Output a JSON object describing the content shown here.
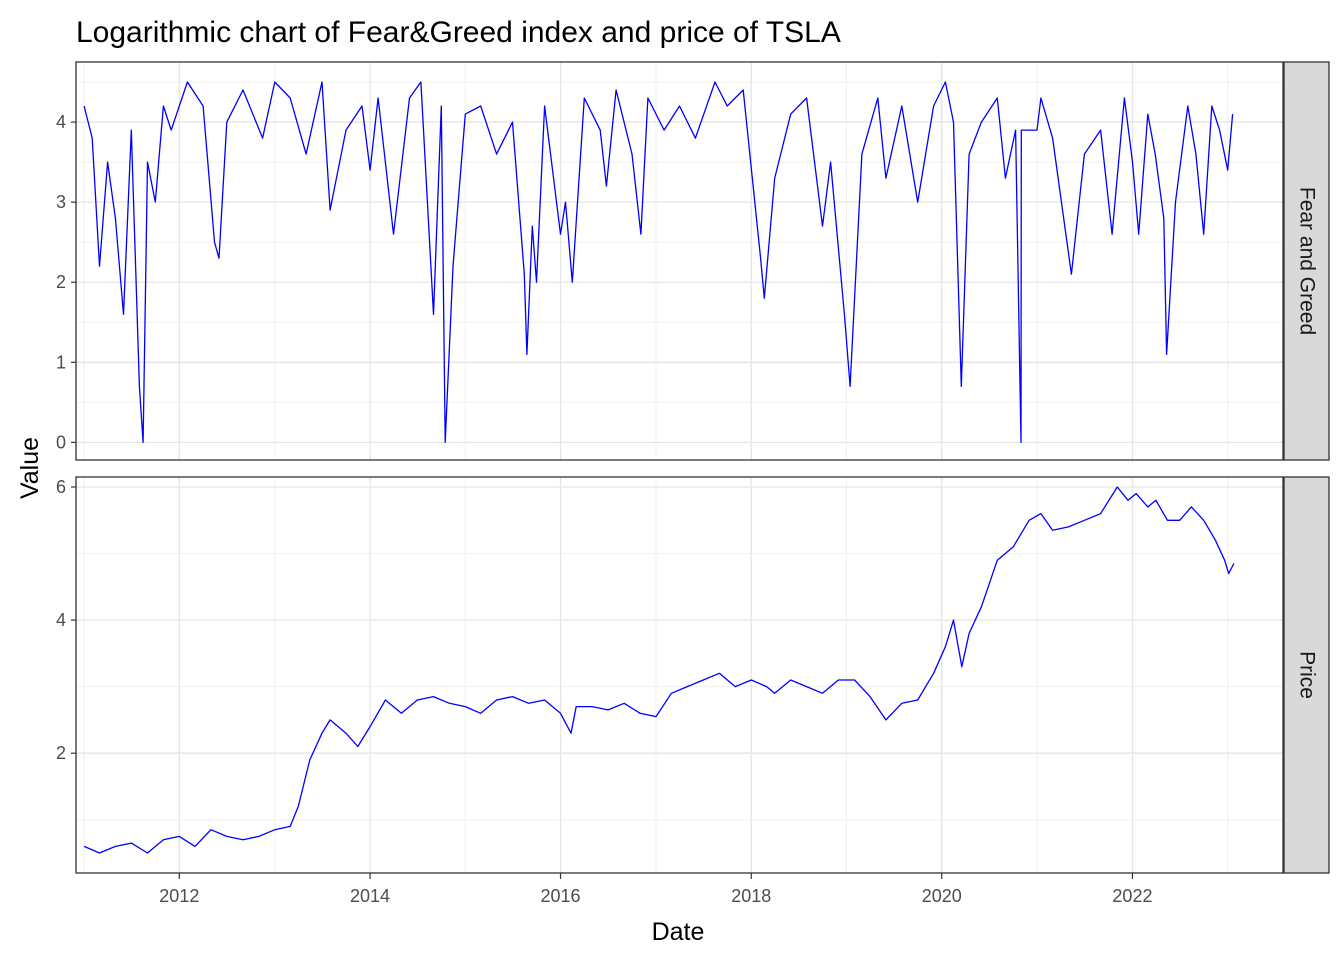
{
  "chart_data": {
    "type": "line",
    "title": "Logarithmic chart of Fear&Greed index and price of TSLA",
    "xlabel": "Date",
    "ylabel": "Value",
    "line_color": "#0000ff",
    "grid": true,
    "x_ticks": [
      "2012",
      "2014",
      "2016",
      "2018",
      "2020",
      "2022"
    ],
    "xlim": [
      "2010-12-01",
      "2023-08-01"
    ],
    "panels": [
      {
        "name": "Fear and Greed",
        "ylim": [
          -0.22,
          4.75
        ],
        "y_ticks": [
          0,
          1,
          2,
          3,
          4
        ],
        "series": [
          {
            "x": [
              "2011-01-01",
              "2011-02-01",
              "2011-03-01",
              "2011-04-01",
              "2011-05-01",
              "2011-06-01",
              "2011-07-01",
              "2011-08-01",
              "2011-08-15",
              "2011-09-01",
              "2011-10-01",
              "2011-11-01",
              "2011-12-01",
              "2012-02-01",
              "2012-04-01",
              "2012-05-15",
              "2012-06-01",
              "2012-07-01",
              "2012-09-01",
              "2012-11-15",
              "2013-01-01",
              "2013-03-01",
              "2013-05-01",
              "2013-07-01",
              "2013-08-01",
              "2013-10-01",
              "2013-12-01",
              "2014-01-01",
              "2014-02-01",
              "2014-04-01",
              "2014-06-01",
              "2014-07-15",
              "2014-09-01",
              "2014-10-01",
              "2014-10-16",
              "2014-11-15",
              "2015-01-01",
              "2015-03-01",
              "2015-05-01",
              "2015-07-01",
              "2015-08-15",
              "2015-08-25",
              "2015-09-15",
              "2015-10-01",
              "2015-11-01",
              "2016-01-01",
              "2016-01-20",
              "2016-02-15",
              "2016-04-01",
              "2016-06-01",
              "2016-06-25",
              "2016-08-01",
              "2016-10-01",
              "2016-11-04",
              "2016-12-01",
              "2017-02-01",
              "2017-04-01",
              "2017-06-01",
              "2017-08-15",
              "2017-10-01",
              "2017-12-01",
              "2018-02-06",
              "2018-02-20",
              "2018-04-01",
              "2018-06-01",
              "2018-08-01",
              "2018-10-01",
              "2018-11-01",
              "2018-12-24",
              "2019-01-15",
              "2019-03-01",
              "2019-05-01",
              "2019-06-01",
              "2019-08-01",
              "2019-10-01",
              "2019-12-01",
              "2020-01-15",
              "2020-02-15",
              "2020-03-16",
              "2020-04-15",
              "2020-06-01",
              "2020-08-01",
              "2020-09-01",
              "2020-10-10",
              "2020-10-31",
              "2020-11-01",
              "2020-11-15",
              "2020-12-31",
              "2021-01-15",
              "2021-03-01",
              "2021-05-12",
              "2021-07-01",
              "2021-09-01",
              "2021-10-15",
              "2021-12-01",
              "2022-01-01",
              "2022-01-25",
              "2022-03-01",
              "2022-03-29",
              "2022-05-01",
              "2022-05-12",
              "2022-06-15",
              "2022-08-01",
              "2022-09-01",
              "2022-10-01",
              "2022-11-01",
              "2022-12-01",
              "2023-01-01",
              "2023-01-20"
            ],
            "y": [
              4.2,
              3.8,
              2.2,
              3.5,
              2.8,
              1.6,
              3.9,
              0.7,
              0.0,
              3.5,
              3.0,
              4.2,
              3.9,
              4.5,
              4.2,
              2.5,
              2.3,
              4.0,
              4.4,
              3.8,
              4.5,
              4.3,
              3.6,
              4.5,
              2.9,
              3.9,
              4.2,
              3.4,
              4.3,
              2.6,
              4.3,
              4.5,
              1.6,
              4.2,
              0.0,
              2.2,
              4.1,
              4.2,
              3.6,
              4.0,
              2.1,
              1.1,
              2.7,
              2.0,
              4.2,
              2.6,
              3.0,
              2.0,
              4.3,
              3.9,
              3.2,
              4.4,
              3.6,
              2.6,
              4.3,
              3.9,
              4.2,
              3.8,
              4.5,
              4.2,
              4.4,
              2.3,
              1.8,
              3.3,
              4.1,
              4.3,
              2.7,
              3.5,
              1.6,
              0.7,
              3.6,
              4.3,
              3.3,
              4.2,
              3.0,
              4.2,
              4.5,
              4.0,
              0.7,
              3.6,
              4.0,
              4.3,
              3.3,
              3.9,
              0.0,
              3.9,
              3.9,
              3.9,
              4.3,
              3.8,
              2.1,
              3.6,
              3.9,
              2.6,
              4.3,
              3.5,
              2.6,
              4.1,
              3.6,
              2.8,
              1.1,
              3.0,
              4.2,
              3.6,
              2.6,
              4.2,
              3.9,
              3.4,
              4.1
            ]
          }
        ]
      },
      {
        "name": "Price",
        "ylim": [
          0.2,
          6.15
        ],
        "y_ticks": [
          2,
          4,
          6
        ],
        "series": [
          {
            "x": [
              "2011-01-01",
              "2011-03-01",
              "2011-05-01",
              "2011-07-01",
              "2011-09-01",
              "2011-11-01",
              "2012-01-01",
              "2012-03-01",
              "2012-05-01",
              "2012-07-01",
              "2012-09-01",
              "2012-11-01",
              "2013-01-01",
              "2013-03-01",
              "2013-04-01",
              "2013-05-15",
              "2013-07-01",
              "2013-08-01",
              "2013-10-01",
              "2013-11-15",
              "2014-01-01",
              "2014-03-01",
              "2014-05-01",
              "2014-07-01",
              "2014-09-01",
              "2014-11-01",
              "2015-01-01",
              "2015-03-01",
              "2015-05-01",
              "2015-07-01",
              "2015-09-01",
              "2015-11-01",
              "2016-01-01",
              "2016-02-10",
              "2016-03-01",
              "2016-05-01",
              "2016-07-01",
              "2016-09-01",
              "2016-11-01",
              "2017-01-01",
              "2017-03-01",
              "2017-05-01",
              "2017-07-01",
              "2017-09-01",
              "2017-11-01",
              "2018-01-01",
              "2018-03-01",
              "2018-04-01",
              "2018-06-01",
              "2018-08-01",
              "2018-10-01",
              "2018-12-01",
              "2019-02-01",
              "2019-04-01",
              "2019-06-01",
              "2019-08-01",
              "2019-10-01",
              "2019-12-01",
              "2020-01-15",
              "2020-02-15",
              "2020-03-18",
              "2020-04-15",
              "2020-06-01",
              "2020-08-01",
              "2020-10-01",
              "2020-12-01",
              "2021-01-15",
              "2021-03-01",
              "2021-05-01",
              "2021-07-01",
              "2021-09-01",
              "2021-11-04",
              "2021-12-15",
              "2022-01-15",
              "2022-03-01",
              "2022-04-01",
              "2022-05-15",
              "2022-07-01",
              "2022-08-15",
              "2022-10-01",
              "2022-11-15",
              "2022-12-20",
              "2023-01-05",
              "2023-01-25"
            ],
            "y": [
              0.6,
              0.5,
              0.6,
              0.65,
              0.5,
              0.7,
              0.75,
              0.6,
              0.85,
              0.75,
              0.7,
              0.75,
              0.85,
              0.9,
              1.2,
              1.9,
              2.3,
              2.5,
              2.3,
              2.1,
              2.4,
              2.8,
              2.6,
              2.8,
              2.85,
              2.75,
              2.7,
              2.6,
              2.8,
              2.85,
              2.75,
              2.8,
              2.6,
              2.3,
              2.7,
              2.7,
              2.65,
              2.75,
              2.6,
              2.55,
              2.9,
              3.0,
              3.1,
              3.2,
              3.0,
              3.1,
              3.0,
              2.9,
              3.1,
              3.0,
              2.9,
              3.1,
              3.1,
              2.85,
              2.5,
              2.75,
              2.8,
              3.2,
              3.6,
              4.0,
              3.3,
              3.8,
              4.2,
              4.9,
              5.1,
              5.5,
              5.6,
              5.35,
              5.4,
              5.5,
              5.6,
              6.0,
              5.8,
              5.9,
              5.7,
              5.8,
              5.5,
              5.5,
              5.7,
              5.5,
              5.2,
              4.9,
              4.7,
              4.85
            ]
          }
        ]
      }
    ]
  }
}
